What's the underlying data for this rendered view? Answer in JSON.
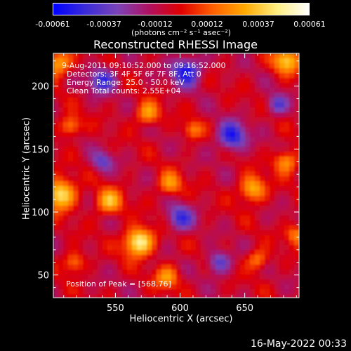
{
  "colorbar": {
    "ticks": [
      "-0.00061",
      "-0.00037",
      "-0.00012",
      "0.00012",
      "0.00037",
      "0.00061"
    ],
    "unit": "(photons cm⁻² s⁻¹ asec⁻²)",
    "stops": [
      "#0000ff",
      "#3a2bd8",
      "#7a44b8",
      "#b01060",
      "#e00000",
      "#ff6000",
      "#ffaa00",
      "#ffee80",
      "#ffffff"
    ]
  },
  "chart_data": {
    "type": "heatmap",
    "title": "Reconstructed RHESSI Image",
    "xlabel": "Heliocentric X (arcsec)",
    "ylabel": "Heliocentric Y (arcsec)",
    "xlim": [
      502,
      692
    ],
    "ylim": [
      32,
      226
    ],
    "xticks": [
      550,
      600,
      650
    ],
    "yticks": [
      50,
      100,
      150,
      200
    ],
    "overlay": [
      "9-Aug-2011 09:10:52.000 to 09:16:52.000",
      "Detectors: 3F 4F 5F 6F 7F 8F, Att 0",
      "Energy Range: 25.0 - 50.0 keV",
      "Clean     Total counts: 2.55E+04"
    ],
    "peak_label": "Position of Peak = [568,76]",
    "peak_position": [
      568,
      76
    ],
    "blobs": [
      {
        "x": 568,
        "y": 76,
        "v": 1.0,
        "r": 11
      },
      {
        "x": 507,
        "y": 114,
        "v": 0.9,
        "r": 12
      },
      {
        "x": 545,
        "y": 108,
        "v": 0.65,
        "r": 10
      },
      {
        "x": 592,
        "y": 122,
        "v": 0.55,
        "r": 9
      },
      {
        "x": 656,
        "y": 118,
        "v": 0.7,
        "r": 10
      },
      {
        "x": 682,
        "y": 140,
        "v": 0.6,
        "r": 9
      },
      {
        "x": 575,
        "y": 178,
        "v": 0.6,
        "r": 9
      },
      {
        "x": 682,
        "y": 220,
        "v": 0.75,
        "r": 10
      },
      {
        "x": 505,
        "y": 218,
        "v": 0.7,
        "r": 10
      },
      {
        "x": 515,
        "y": 168,
        "v": 0.55,
        "r": 8
      },
      {
        "x": 518,
        "y": 60,
        "v": 0.5,
        "r": 8
      },
      {
        "x": 590,
        "y": 48,
        "v": 0.55,
        "r": 9
      },
      {
        "x": 660,
        "y": 62,
        "v": 0.5,
        "r": 8
      },
      {
        "x": 610,
        "y": 165,
        "v": 0.45,
        "r": 7
      },
      {
        "x": 690,
        "y": 82,
        "v": 0.5,
        "r": 8
      },
      {
        "x": 605,
        "y": 212,
        "v": -0.8,
        "r": 11
      },
      {
        "x": 540,
        "y": 205,
        "v": -0.65,
        "r": 10
      },
      {
        "x": 640,
        "y": 160,
        "v": -0.75,
        "r": 11
      },
      {
        "x": 600,
        "y": 95,
        "v": -0.6,
        "r": 10
      },
      {
        "x": 630,
        "y": 60,
        "v": -0.55,
        "r": 9
      },
      {
        "x": 540,
        "y": 140,
        "v": -0.45,
        "r": 8
      },
      {
        "x": 675,
        "y": 185,
        "v": -0.5,
        "r": 8
      }
    ]
  },
  "timestamp": "16-May-2022 00:33"
}
